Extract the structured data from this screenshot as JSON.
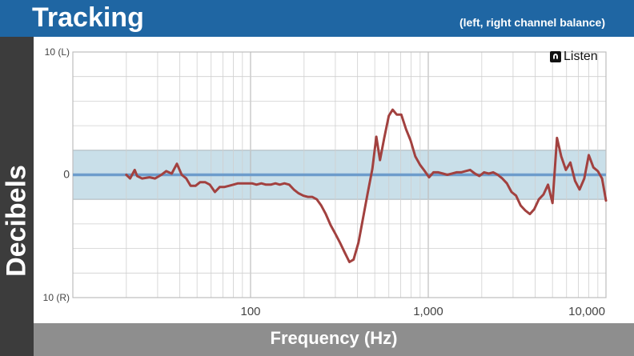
{
  "header": {
    "title": "Tracking",
    "subtitle": "(left, right channel balance)"
  },
  "logo": {
    "text": "Listen"
  },
  "colors": {
    "header": "#1f66a3",
    "band": "#c9dfe9",
    "zero_line": "#6d9ccb",
    "curve": "#a2413f"
  },
  "chart_data": {
    "type": "line",
    "title": "Tracking",
    "subtitle": "(left, right channel balance)",
    "xlabel": "Frequency (Hz)",
    "ylabel": "Decibels",
    "x_scale": "log",
    "xlim": [
      10,
      10000
    ],
    "ylim": [
      -10,
      10
    ],
    "x_ticks": [
      {
        "value": 100,
        "label": "100"
      },
      {
        "value": 1000,
        "label": "1,000"
      },
      {
        "value": 10000,
        "label": "10,000"
      }
    ],
    "y_ticks": [
      {
        "value": 10,
        "label": "10 (L)"
      },
      {
        "value": 0,
        "label": "0"
      },
      {
        "value": -10,
        "label": "10 (R)"
      }
    ],
    "tolerance_band": [
      -2,
      2
    ],
    "grid": true,
    "series": [
      {
        "values": [
          [
            20,
            0
          ],
          [
            21,
            -0.3
          ],
          [
            22.3,
            0.4
          ],
          [
            23,
            -0.1
          ],
          [
            24.5,
            -0.3
          ],
          [
            27,
            -0.2
          ],
          [
            29,
            -0.3
          ],
          [
            31.5,
            0
          ],
          [
            33.5,
            0.3
          ],
          [
            36,
            0.1
          ],
          [
            38.5,
            0.9
          ],
          [
            41,
            0
          ],
          [
            43.5,
            -0.3
          ],
          [
            46,
            -0.9
          ],
          [
            49,
            -0.9
          ],
          [
            52,
            -0.6
          ],
          [
            55.5,
            -0.6
          ],
          [
            59,
            -0.8
          ],
          [
            63,
            -1.4
          ],
          [
            67,
            -1.0
          ],
          [
            71,
            -1.0
          ],
          [
            75.5,
            -0.9
          ],
          [
            80,
            -0.8
          ],
          [
            85,
            -0.7
          ],
          [
            90,
            -0.7
          ],
          [
            96,
            -0.7
          ],
          [
            102,
            -0.7
          ],
          [
            108,
            -0.8
          ],
          [
            115,
            -0.7
          ],
          [
            122,
            -0.8
          ],
          [
            130,
            -0.8
          ],
          [
            138,
            -0.7
          ],
          [
            146,
            -0.8
          ],
          [
            155,
            -0.7
          ],
          [
            165,
            -0.8
          ],
          [
            175,
            -1.2
          ],
          [
            186,
            -1.5
          ],
          [
            198,
            -1.7
          ],
          [
            210,
            -1.8
          ],
          [
            222,
            -1.8
          ],
          [
            236,
            -2.0
          ],
          [
            250,
            -2.5
          ],
          [
            265,
            -3.2
          ],
          [
            282,
            -4.1
          ],
          [
            300,
            -4.8
          ],
          [
            318,
            -5.5
          ],
          [
            338,
            -6.3
          ],
          [
            360,
            -7.1
          ],
          [
            380,
            -6.9
          ],
          [
            405,
            -5.5
          ],
          [
            430,
            -3.5
          ],
          [
            456,
            -1.5
          ],
          [
            485,
            0.5
          ],
          [
            510,
            3.1
          ],
          [
            535,
            1.2
          ],
          [
            565,
            3.0
          ],
          [
            600,
            4.8
          ],
          [
            630,
            5.3
          ],
          [
            665,
            4.9
          ],
          [
            705,
            4.9
          ],
          [
            750,
            3.7
          ],
          [
            795,
            2.8
          ],
          [
            845,
            1.5
          ],
          [
            900,
            0.8
          ],
          [
            955,
            0.3
          ],
          [
            1010,
            -0.2
          ],
          [
            1070,
            0.2
          ],
          [
            1140,
            0.2
          ],
          [
            1210,
            0.1
          ],
          [
            1280,
            0
          ],
          [
            1360,
            0.1
          ],
          [
            1440,
            0.2
          ],
          [
            1530,
            0.2
          ],
          [
            1620,
            0.3
          ],
          [
            1720,
            0.4
          ],
          [
            1830,
            0.1
          ],
          [
            1940,
            -0.1
          ],
          [
            2060,
            0.2
          ],
          [
            2190,
            0.1
          ],
          [
            2320,
            0.2
          ],
          [
            2460,
            0
          ],
          [
            2610,
            -0.3
          ],
          [
            2770,
            -0.7
          ],
          [
            2940,
            -1.4
          ],
          [
            3120,
            -1.7
          ],
          [
            3310,
            -2.5
          ],
          [
            3510,
            -2.9
          ],
          [
            3730,
            -3.2
          ],
          [
            3950,
            -2.8
          ],
          [
            4190,
            -2.0
          ],
          [
            4450,
            -1.6
          ],
          [
            4720,
            -0.8
          ],
          [
            5000,
            -2.3
          ],
          [
            5300,
            3.0
          ],
          [
            5600,
            1.5
          ],
          [
            5950,
            0.4
          ],
          [
            6300,
            1.0
          ],
          [
            6700,
            -0.5
          ],
          [
            7100,
            -1.2
          ],
          [
            7550,
            -0.3
          ],
          [
            8000,
            1.6
          ],
          [
            8500,
            0.6
          ],
          [
            9000,
            0.3
          ],
          [
            9500,
            -0.3
          ],
          [
            10000,
            -2.1
          ]
        ]
      }
    ]
  }
}
